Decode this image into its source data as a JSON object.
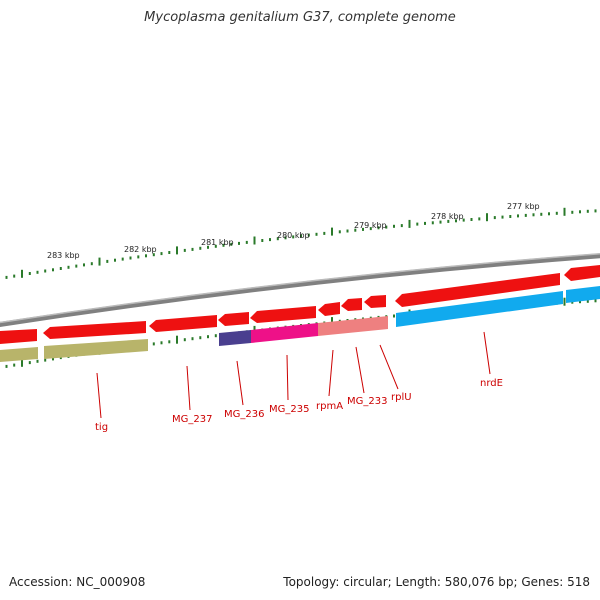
{
  "title": "Mycoplasma genitalium G37, complete genome",
  "footer": {
    "accession": "Accession: NC_000908",
    "summary": "Topology: circular; Length: 580,076 bp; Genes: 518"
  },
  "scale": {
    "tick_labels": [
      "283 kbp",
      "282 kbp",
      "281 kbp",
      "280 kbp",
      "279 kbp",
      "278 kbp",
      "277 kbp"
    ]
  },
  "genes": [
    {
      "name": "tig",
      "color": "#b8b46a"
    },
    {
      "name": "MG_237",
      "color": "#ee1111"
    },
    {
      "name": "MG_236",
      "color": "#4a3f8f"
    },
    {
      "name": "MG_235",
      "color": "#ee1188"
    },
    {
      "name": "rpmA",
      "color": "#ee7777"
    },
    {
      "name": "MG_233",
      "color": "#ee1111"
    },
    {
      "name": "rplU",
      "color": "#ee1111"
    },
    {
      "name": "nrdE",
      "color": "#11aaee"
    }
  ],
  "colors": {
    "backbone": "#888888",
    "cds": "#ee1111",
    "tick": "#2a7a2a",
    "label": "#cc0000"
  }
}
